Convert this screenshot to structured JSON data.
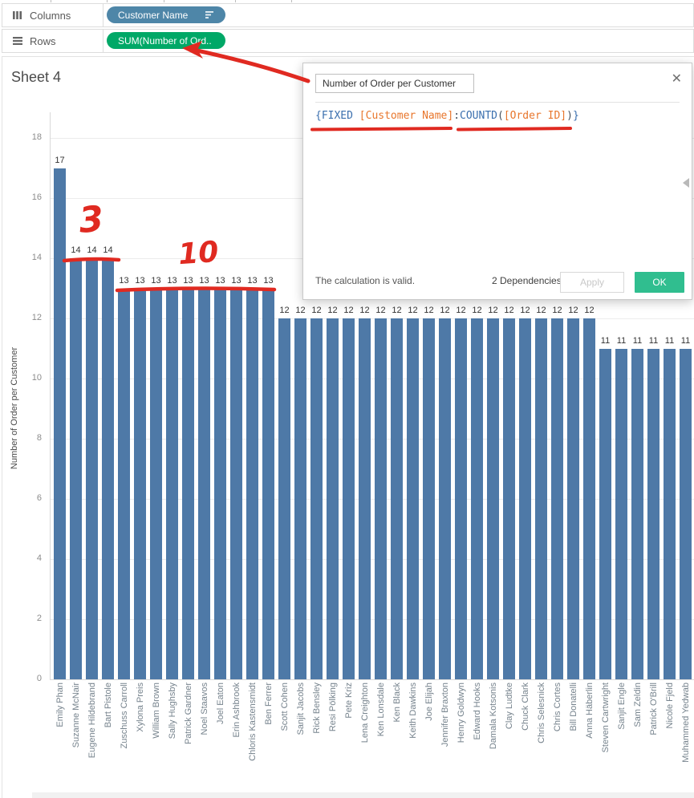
{
  "shelves": {
    "columns": {
      "label": "Columns",
      "pill": {
        "text": "Customer Name",
        "color": "#4e86a8",
        "icon": "sort-descending-icon"
      }
    },
    "rows": {
      "label": "Rows",
      "pill": {
        "text": "SUM(Number of Ord..",
        "color": "#00a867"
      }
    }
  },
  "sheet": {
    "title": "Sheet 4"
  },
  "chart_data": {
    "type": "bar",
    "title": "Sheet 4",
    "xlabel": "",
    "ylabel": "Number of Order per Customer",
    "ylim": [
      0,
      18
    ],
    "ytick_step": 2,
    "grid": true,
    "bar_color": "#4e79a7",
    "value_labels": true,
    "categories": [
      "Emily Phan",
      "Suzanne McNair",
      "Eugene Hildebrand",
      "Bart Pistole",
      "Zuschuss Carroll",
      "Xylona Preis",
      "William Brown",
      "Sally Hughsby",
      "Patrick Gardner",
      "Noel Staavos",
      "Joel Eaton",
      "Erin Ashbrook",
      "Chloris Kastensmidt",
      "Ben Ferrer",
      "Scott Cohen",
      "Sanjit Jacobs",
      "Rick Bensley",
      "Resi Pölking",
      "Pete Kriz",
      "Lena Creighton",
      "Ken Lonsdale",
      "Ken Black",
      "Keith Dawkins",
      "Joe Elijah",
      "Jennifer Braxton",
      "Henry Goldwyn",
      "Edward Hooks",
      "Damala Kotsonis",
      "Clay Ludtke",
      "Chuck Clark",
      "Chris Selesnick",
      "Chris Cortes",
      "Bill Donatelli",
      "Anna Häberlin",
      "Steven Cartwright",
      "Sanjit Engle",
      "Sam Zeldin",
      "Patrick O'Brill",
      "Nicole Fjeld",
      "Muhammed Yedwab"
    ],
    "values": [
      17,
      14,
      14,
      14,
      13,
      13,
      13,
      13,
      13,
      13,
      13,
      13,
      13,
      13,
      12,
      12,
      12,
      12,
      12,
      12,
      12,
      12,
      12,
      12,
      12,
      12,
      12,
      12,
      12,
      12,
      12,
      12,
      12,
      12,
      11,
      11,
      11,
      11,
      11,
      11
    ]
  },
  "dialog": {
    "name_value": "Number of Order per Customer",
    "close_icon": "✕",
    "formula_tokens": [
      {
        "text": "{FIXED ",
        "color": "#3a6fae"
      },
      {
        "text": "[Customer Name]",
        "color": "#e8762c"
      },
      {
        "text": ":",
        "color": "#44515e"
      },
      {
        "text": "COUNTD",
        "color": "#3a6fae"
      },
      {
        "text": "(",
        "color": "#44515e"
      },
      {
        "text": "[Order ID]",
        "color": "#e8762c"
      },
      {
        "text": ")",
        "color": "#44515e"
      },
      {
        "text": "}",
        "color": "#3a6fae"
      }
    ],
    "status": "The calculation is valid.",
    "dependencies_label": "2 Dependencies",
    "apply_label": "Apply",
    "ok_label": "OK",
    "ok_color": "#30be8f"
  },
  "annotations": {
    "color": "#e02a21",
    "three": "3",
    "ten": "10"
  }
}
